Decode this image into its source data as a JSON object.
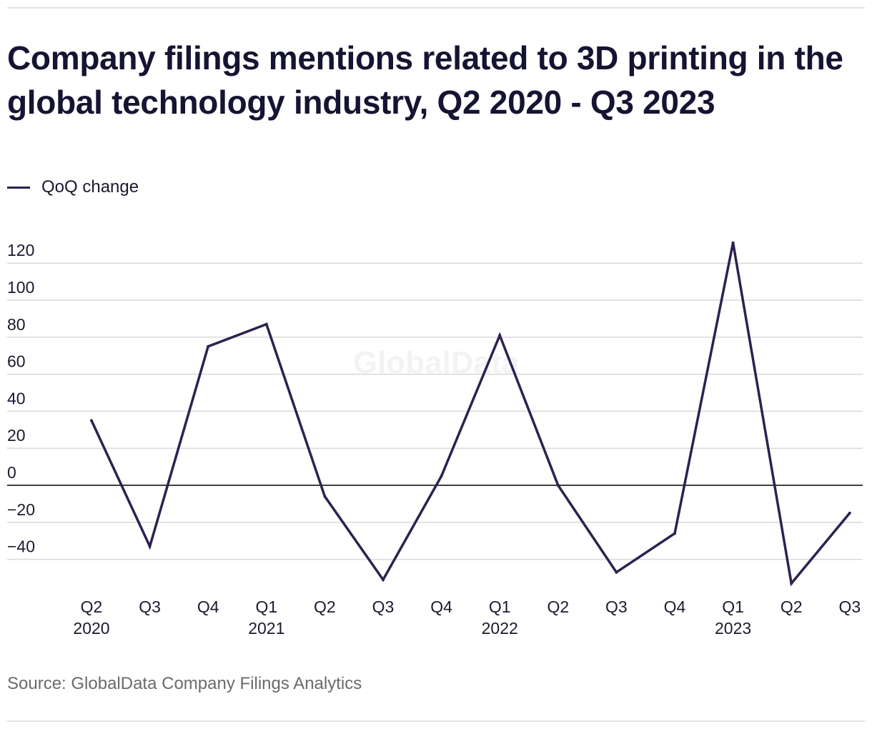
{
  "title": "Company filings mentions related to 3D printing in the global technology industry, Q2 2020 - Q3 2023",
  "legend": {
    "label": "QoQ change",
    "color": "#2e2150"
  },
  "source": "Source: GlobalData Company Filings Analytics",
  "watermark": "GlobalData",
  "chart_data": {
    "type": "line",
    "title": "Company filings mentions related to 3D printing in the global technology industry, Q2 2020 - Q3 2023",
    "xlabel": "",
    "ylabel": "",
    "ylim": [
      -50,
      135
    ],
    "yticks": [
      120,
      100,
      80,
      60,
      40,
      20,
      0,
      -20,
      -40
    ],
    "grid": true,
    "legend_position": "top-left",
    "categories": [
      "Q2 2020",
      "Q3 2020",
      "Q4 2020",
      "Q1 2021",
      "Q2 2021",
      "Q3 2021",
      "Q4 2021",
      "Q1 2022",
      "Q2 2022",
      "Q3 2022",
      "Q4 2022",
      "Q1 2023",
      "Q2 2023",
      "Q3 2023"
    ],
    "quarter_labels": [
      "Q2",
      "Q3",
      "Q4",
      "Q1",
      "Q2",
      "Q3",
      "Q4",
      "Q1",
      "Q2",
      "Q3",
      "Q4",
      "Q1",
      "Q2",
      "Q3"
    ],
    "year_labels": [
      "2020",
      "",
      "",
      "2021",
      "",
      "",
      "",
      "2022",
      "",
      "",
      "",
      "2023",
      "",
      ""
    ],
    "series": [
      {
        "name": "QoQ change",
        "color": "#2e2150",
        "values": [
          35,
          -33,
          75,
          87,
          -6,
          -51,
          5,
          81,
          0,
          -47,
          -26,
          131,
          -53,
          -15
        ]
      }
    ]
  }
}
